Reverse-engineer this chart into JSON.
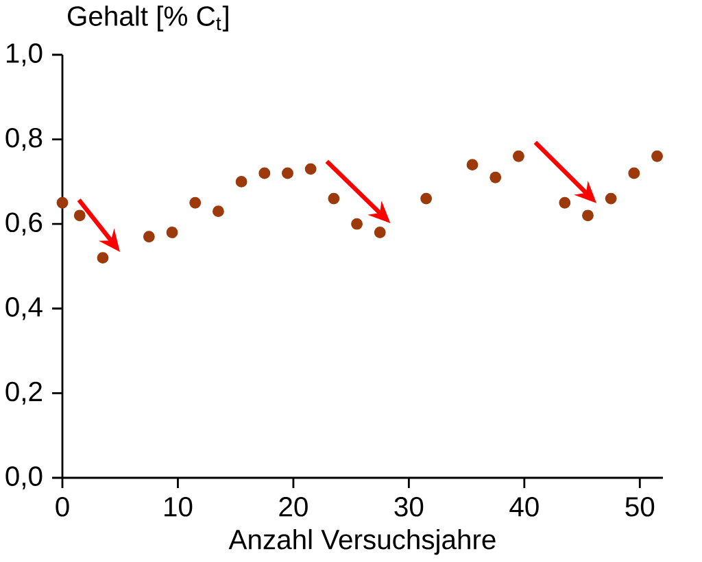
{
  "chart_data": {
    "type": "scatter",
    "xlabel": "Anzahl Versuchsjahre",
    "ylabel": "Gehalt [% C$_{t}$]",
    "x": [
      0,
      1.5,
      3.5,
      7.5,
      9.5,
      11.5,
      13.5,
      15.5,
      17.5,
      19.5,
      21.5,
      23.5,
      25.5,
      27.5,
      31.5,
      35.5,
      37.5,
      39.5,
      43.5,
      45.5,
      47.5,
      49.5,
      51.5
    ],
    "values": [
      0.65,
      0.62,
      0.52,
      0.57,
      0.58,
      0.65,
      0.63,
      0.7,
      0.72,
      0.72,
      0.73,
      0.66,
      0.6,
      0.58,
      0.66,
      0.74,
      0.71,
      0.76,
      0.65,
      0.62,
      0.66,
      0.72,
      0.76
    ],
    "color": "#9c3a0c",
    "marker": "circle",
    "grid": false,
    "legend": false,
    "xlim": [
      0,
      52
    ],
    "ylim": [
      0,
      1
    ],
    "xticks": [
      0,
      10,
      20,
      30,
      40,
      50
    ],
    "yticks": [
      {
        "value": 0,
        "label": "0,0"
      },
      {
        "value": 0.2,
        "label": "0,2"
      },
      {
        "value": 0.4,
        "label": "0,4"
      },
      {
        "value": 0.6,
        "label": "0,6"
      },
      {
        "value": 0.8,
        "label": "0,8"
      },
      {
        "value": 1,
        "label": "1,0"
      }
    ]
  }
}
